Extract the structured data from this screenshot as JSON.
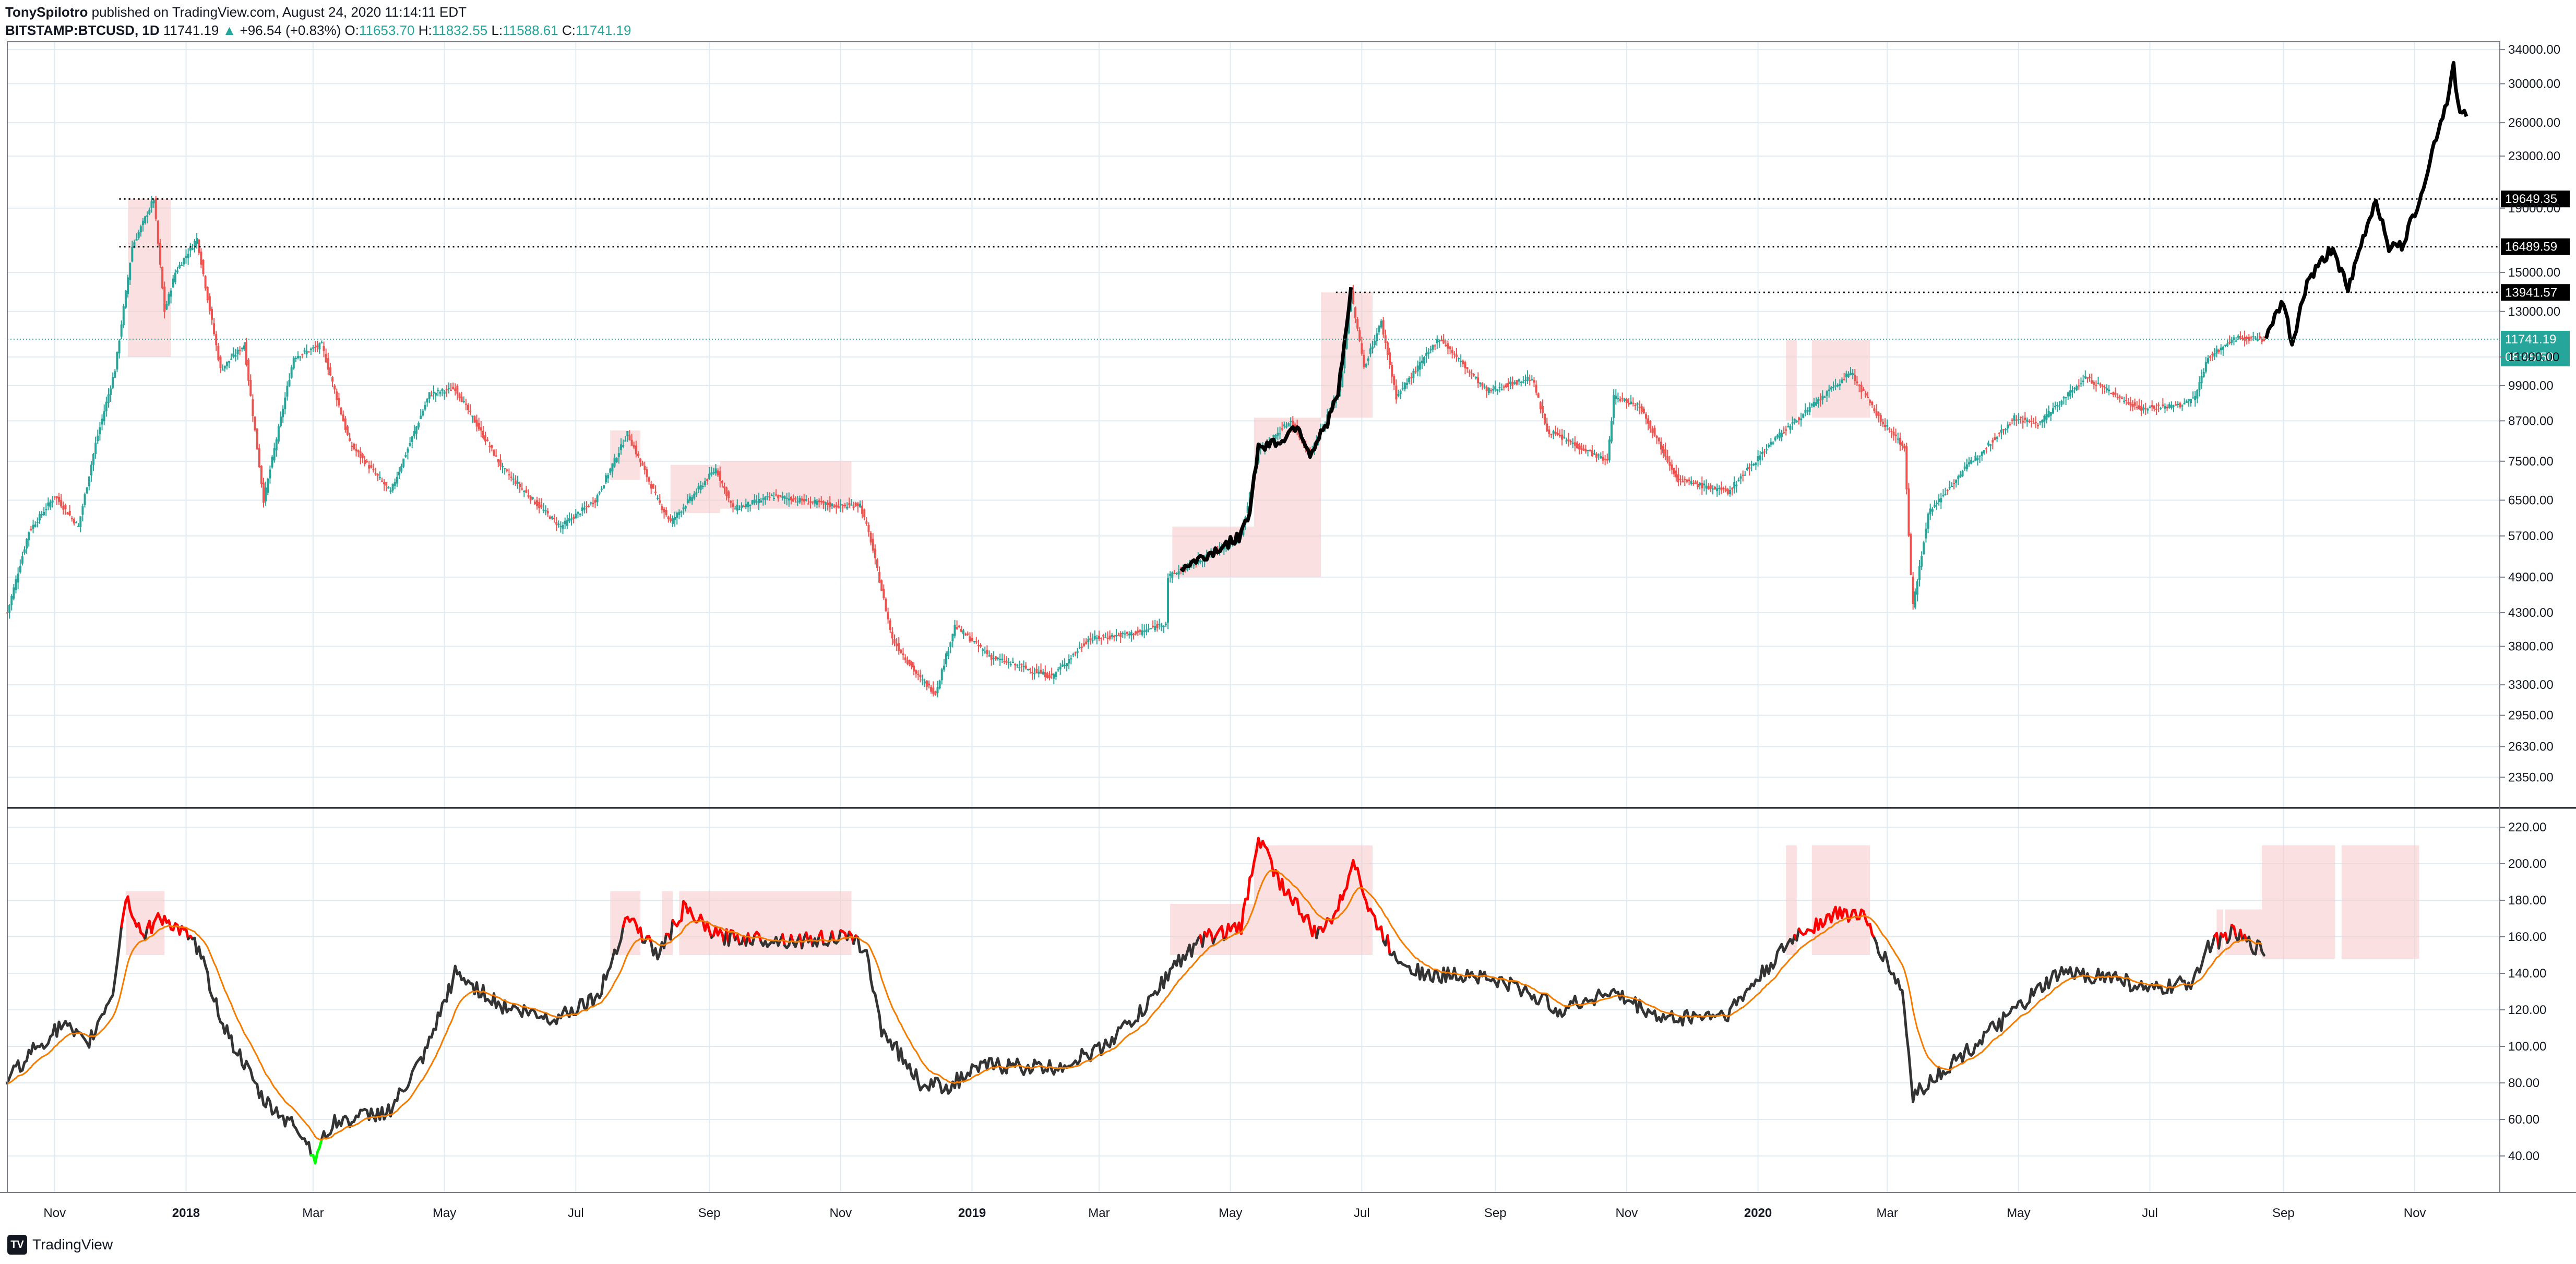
{
  "header": {
    "publisher": "TonySpilotro",
    "published_text": "published on TradingView.com, August 24, 2020 11:14:11 EDT",
    "symbol": "BITSTAMP:BTCUSD, 1D",
    "last": "11741.19",
    "change_arrow": "▲",
    "change": "+96.54 (+0.83%)",
    "open_label": "O:",
    "open": "11653.70",
    "high_label": "H:",
    "high": "11832.55",
    "low_label": "L:",
    "low": "11588.61",
    "close_label": "C:",
    "close": "11741.19"
  },
  "footer": {
    "brand": "TradingView",
    "logo_icon": "tradingview-logo-icon"
  },
  "colors": {
    "up": "#26a69a",
    "down": "#ef5350",
    "black": "#000000",
    "ema": "#f57c00",
    "rsi_hot": "#ff0000",
    "rsi_cold": "#00ff00",
    "zone": "#f5c6c8",
    "grid": "#e1ecf2",
    "axis": "#787b86"
  },
  "chart_data": [
    {
      "type": "line",
      "name": "BTCUSD daily price (log scale)",
      "scale": "log",
      "ylim": [
        2100,
        35000
      ],
      "y_ticks": [
        "34000.00",
        "30000.00",
        "26000.00",
        "23000.00",
        "19000.00",
        "15000.00",
        "13000.00",
        "11000.00",
        "9900.00",
        "8700.00",
        "7500.00",
        "6500.00",
        "5700.00",
        "4900.00",
        "4300.00",
        "3800.00",
        "3300.00",
        "2950.00",
        "2630.00",
        "2350.00"
      ],
      "x_ticks": [
        {
          "date": "2017-11-01",
          "label": "Nov",
          "bold": false
        },
        {
          "date": "2018-01-01",
          "label": "2018",
          "bold": true
        },
        {
          "date": "2018-03-01",
          "label": "Mar",
          "bold": false
        },
        {
          "date": "2018-05-01",
          "label": "May",
          "bold": false
        },
        {
          "date": "2018-07-01",
          "label": "Jul",
          "bold": false
        },
        {
          "date": "2018-09-01",
          "label": "Sep",
          "bold": false
        },
        {
          "date": "2018-11-01",
          "label": "Nov",
          "bold": false
        },
        {
          "date": "2019-01-01",
          "label": "2019",
          "bold": true
        },
        {
          "date": "2019-03-01",
          "label": "Mar",
          "bold": false
        },
        {
          "date": "2019-05-01",
          "label": "May",
          "bold": false
        },
        {
          "date": "2019-07-01",
          "label": "Jul",
          "bold": false
        },
        {
          "date": "2019-09-01",
          "label": "Sep",
          "bold": false
        },
        {
          "date": "2019-11-01",
          "label": "Nov",
          "bold": false
        },
        {
          "date": "2020-01-01",
          "label": "2020",
          "bold": true
        },
        {
          "date": "2020-03-01",
          "label": "Mar",
          "bold": false
        },
        {
          "date": "2020-05-01",
          "label": "May",
          "bold": false
        },
        {
          "date": "2020-07-01",
          "label": "Jul",
          "bold": false
        },
        {
          "date": "2020-09-01",
          "label": "Sep",
          "bold": false
        },
        {
          "date": "2020-11-01",
          "label": "Nov",
          "bold": false
        }
      ],
      "xlim": [
        "2017-10-10",
        "2020-12-10"
      ],
      "price_points": [
        [
          "2017-10-10",
          4300
        ],
        [
          "2017-10-20",
          5800
        ],
        [
          "2017-11-01",
          6600
        ],
        [
          "2017-11-12",
          5900
        ],
        [
          "2017-11-20",
          8000
        ],
        [
          "2017-11-29",
          10500
        ],
        [
          "2017-12-07",
          16500
        ],
        [
          "2017-12-17",
          19649
        ],
        [
          "2017-12-22",
          13000
        ],
        [
          "2017-12-27",
          15000
        ],
        [
          "2018-01-06",
          17000
        ],
        [
          "2018-01-17",
          10500
        ],
        [
          "2018-01-28",
          11500
        ],
        [
          "2018-02-06",
          6500
        ],
        [
          "2018-02-20",
          11000
        ],
        [
          "2018-03-05",
          11500
        ],
        [
          "2018-03-18",
          8000
        ],
        [
          "2018-04-06",
          6700
        ],
        [
          "2018-04-24",
          9600
        ],
        [
          "2018-05-06",
          9800
        ],
        [
          "2018-05-28",
          7300
        ],
        [
          "2018-06-13",
          6400
        ],
        [
          "2018-06-24",
          5900
        ],
        [
          "2018-07-10",
          6500
        ],
        [
          "2018-07-25",
          8300
        ],
        [
          "2018-08-08",
          6500
        ],
        [
          "2018-08-14",
          6000
        ],
        [
          "2018-09-04",
          7300
        ],
        [
          "2018-09-12",
          6300
        ],
        [
          "2018-10-01",
          6600
        ],
        [
          "2018-11-01",
          6350
        ],
        [
          "2018-11-10",
          6400
        ],
        [
          "2018-11-15",
          5600
        ],
        [
          "2018-11-25",
          3900
        ],
        [
          "2018-12-07",
          3400
        ],
        [
          "2018-12-15",
          3200
        ],
        [
          "2018-12-24",
          4100
        ],
        [
          "2019-01-10",
          3650
        ],
        [
          "2019-02-07",
          3400
        ],
        [
          "2019-02-24",
          3900
        ],
        [
          "2019-03-20",
          4000
        ],
        [
          "2019-04-01",
          4150
        ],
        [
          "2019-04-02",
          4900
        ],
        [
          "2019-04-20",
          5300
        ],
        [
          "2019-05-06",
          5700
        ],
        [
          "2019-05-14",
          7800
        ],
        [
          "2019-05-29",
          8700
        ],
        [
          "2019-06-07",
          7700
        ],
        [
          "2019-06-21",
          9800
        ],
        [
          "2019-06-26",
          13941
        ],
        [
          "2019-07-02",
          10600
        ],
        [
          "2019-07-10",
          12500
        ],
        [
          "2019-07-17",
          9500
        ],
        [
          "2019-08-06",
          11800
        ],
        [
          "2019-08-28",
          9700
        ],
        [
          "2019-09-18",
          10200
        ],
        [
          "2019-09-25",
          8400
        ],
        [
          "2019-10-23",
          7500
        ],
        [
          "2019-10-26",
          9500
        ],
        [
          "2019-11-07",
          9200
        ],
        [
          "2019-11-25",
          7000
        ],
        [
          "2019-12-18",
          6700
        ],
        [
          "2020-01-08",
          8100
        ],
        [
          "2020-01-28",
          9300
        ],
        [
          "2020-02-13",
          10400
        ],
        [
          "2020-02-26",
          8800
        ],
        [
          "2020-03-09",
          7900
        ],
        [
          "2020-03-12",
          4900
        ],
        [
          "2020-03-13",
          4400
        ],
        [
          "2020-03-20",
          6200
        ],
        [
          "2020-04-06",
          7300
        ],
        [
          "2020-04-29",
          8800
        ],
        [
          "2020-05-10",
          8600
        ],
        [
          "2020-06-01",
          10200
        ],
        [
          "2020-06-26",
          9100
        ],
        [
          "2020-07-15",
          9200
        ],
        [
          "2020-07-22",
          9500
        ],
        [
          "2020-07-28",
          11000
        ],
        [
          "2020-08-10",
          11800
        ],
        [
          "2020-08-24",
          11741
        ]
      ],
      "projection_points": [
        [
          "2020-08-24",
          11900
        ],
        [
          "2020-09-01",
          13500
        ],
        [
          "2020-09-05",
          11500
        ],
        [
          "2020-09-12",
          14500
        ],
        [
          "2020-09-24",
          16489
        ],
        [
          "2020-10-01",
          14000
        ],
        [
          "2020-10-08",
          17000
        ],
        [
          "2020-10-14",
          19649
        ],
        [
          "2020-10-20",
          16500
        ],
        [
          "2020-10-26",
          16489
        ],
        [
          "2020-11-03",
          19500
        ],
        [
          "2020-11-10",
          24000
        ],
        [
          "2020-11-17",
          29000
        ],
        [
          "2020-11-19",
          32000
        ],
        [
          "2020-11-22",
          26500
        ],
        [
          "2020-11-25",
          27000
        ]
      ],
      "black_segments": [
        {
          "note": "highlighted path",
          "points": [
            [
              "2019-04-08",
              5050
            ],
            [
              "2019-04-22",
              5350
            ],
            [
              "2019-05-06",
              5700
            ],
            [
              "2019-05-10",
              6300
            ],
            [
              "2019-05-14",
              7900
            ],
            [
              "2019-05-25",
              8100
            ],
            [
              "2019-06-01",
              8600
            ],
            [
              "2019-06-07",
              7700
            ],
            [
              "2019-06-14",
              8500
            ],
            [
              "2019-06-20",
              9600
            ],
            [
              "2019-06-26",
              13941
            ]
          ]
        }
      ],
      "zones": [
        [
          "2017-12-05",
          "2017-12-25",
          11000,
          19649
        ],
        [
          "2018-07-17",
          "2018-07-31",
          7000,
          8400
        ],
        [
          "2018-08-14",
          "2018-09-06",
          6200,
          7400
        ],
        [
          "2018-09-06",
          "2018-11-06",
          6300,
          7500
        ],
        [
          "2019-04-04",
          "2019-05-12",
          4900,
          5900
        ],
        [
          "2019-05-12",
          "2019-06-12",
          4900,
          8800
        ],
        [
          "2019-06-12",
          "2019-07-06",
          8800,
          13941
        ],
        [
          "2020-01-14",
          "2020-01-19",
          8700,
          11700
        ],
        [
          "2020-01-26",
          "2020-02-22",
          8800,
          11700
        ]
      ],
      "levels": [
        {
          "value": 19649.35,
          "label": "19649.35",
          "from": "2017-12-01"
        },
        {
          "value": 16489.59,
          "label": "16489.59",
          "from": "2017-12-01"
        },
        {
          "value": 13941.57,
          "label": "13941.57",
          "from": "2019-06-19"
        }
      ],
      "current_price": {
        "value": 11741.19,
        "label": "11741.19",
        "countdown": "08:45:50"
      }
    },
    {
      "type": "line",
      "name": "oscillator",
      "ylim": [
        20,
        230
      ],
      "y_ticks": [
        "220.00",
        "200.00",
        "180.00",
        "160.00",
        "140.00",
        "120.00",
        "100.00",
        "80.00",
        "60.00",
        "40.00"
      ],
      "hot_threshold": 160,
      "cold_threshold": 45,
      "osc_points": [
        [
          "2017-10-10",
          82
        ],
        [
          "2017-10-22",
          98
        ],
        [
          "2017-11-05",
          112
        ],
        [
          "2017-11-16",
          100
        ],
        [
          "2017-11-28",
          130
        ],
        [
          "2017-12-04",
          182
        ],
        [
          "2017-12-12",
          160
        ],
        [
          "2017-12-20",
          172
        ],
        [
          "2018-01-06",
          155
        ],
        [
          "2018-01-19",
          110
        ],
        [
          "2018-02-06",
          70
        ],
        [
          "2018-02-22",
          55
        ],
        [
          "2018-03-02",
          40
        ],
        [
          "2018-03-10",
          58
        ],
        [
          "2018-04-06",
          65
        ],
        [
          "2018-04-22",
          95
        ],
        [
          "2018-05-06",
          140
        ],
        [
          "2018-05-28",
          122
        ],
        [
          "2018-06-20",
          115
        ],
        [
          "2018-07-12",
          128
        ],
        [
          "2018-07-25",
          172
        ],
        [
          "2018-08-08",
          150
        ],
        [
          "2018-08-20",
          175
        ],
        [
          "2018-09-05",
          160
        ],
        [
          "2018-10-15",
          158
        ],
        [
          "2018-11-01",
          160
        ],
        [
          "2018-11-12",
          155
        ],
        [
          "2018-11-20",
          110
        ],
        [
          "2018-12-08",
          80
        ],
        [
          "2018-12-20",
          78
        ],
        [
          "2019-01-08",
          90
        ],
        [
          "2019-02-08",
          88
        ],
        [
          "2019-03-01",
          98
        ],
        [
          "2019-03-22",
          120
        ],
        [
          "2019-04-05",
          145
        ],
        [
          "2019-04-20",
          160
        ],
        [
          "2019-05-06",
          165
        ],
        [
          "2019-05-14",
          215
        ],
        [
          "2019-05-24",
          190
        ],
        [
          "2019-06-02",
          175
        ],
        [
          "2019-06-10",
          160
        ],
        [
          "2019-06-22",
          180
        ],
        [
          "2019-06-27",
          205
        ],
        [
          "2019-07-04",
          175
        ],
        [
          "2019-07-16",
          150
        ],
        [
          "2019-08-01",
          138
        ],
        [
          "2019-08-20",
          140
        ],
        [
          "2019-09-12",
          132
        ],
        [
          "2019-10-01",
          120
        ],
        [
          "2019-10-24",
          130
        ],
        [
          "2019-11-18",
          115
        ],
        [
          "2019-12-18",
          118
        ],
        [
          "2020-01-07",
          145
        ],
        [
          "2020-01-20",
          162
        ],
        [
          "2020-02-07",
          173
        ],
        [
          "2020-02-18",
          172
        ],
        [
          "2020-02-28",
          150
        ],
        [
          "2020-03-08",
          130
        ],
        [
          "2020-03-13",
          73
        ],
        [
          "2020-03-25",
          85
        ],
        [
          "2020-04-10",
          100
        ],
        [
          "2020-04-30",
          120
        ],
        [
          "2020-05-20",
          140
        ],
        [
          "2020-06-15",
          138
        ],
        [
          "2020-07-01",
          130
        ],
        [
          "2020-07-20",
          135
        ],
        [
          "2020-07-28",
          155
        ],
        [
          "2020-08-08",
          162
        ],
        [
          "2020-08-18",
          155
        ],
        [
          "2020-08-24",
          152
        ]
      ],
      "osc_zones": [
        [
          "2017-12-04",
          "2017-12-22",
          150,
          185
        ],
        [
          "2018-07-17",
          "2018-07-31",
          150,
          185
        ],
        [
          "2018-08-10",
          "2018-08-15",
          150,
          185
        ],
        [
          "2018-08-18",
          "2018-09-06",
          150,
          185
        ],
        [
          "2018-09-06",
          "2018-11-06",
          150,
          185
        ],
        [
          "2019-04-03",
          "2019-05-12",
          150,
          178
        ],
        [
          "2019-05-12",
          "2019-06-12",
          150,
          210
        ],
        [
          "2019-06-12",
          "2019-07-06",
          150,
          210
        ],
        [
          "2020-01-14",
          "2020-01-19",
          150,
          210
        ],
        [
          "2020-01-26",
          "2020-02-22",
          150,
          210
        ],
        [
          "2020-08-01",
          "2020-08-04",
          150,
          175
        ],
        [
          "2020-08-05",
          "2020-08-22",
          150,
          175
        ],
        [
          "2020-08-22",
          "2020-09-25",
          148,
          210
        ],
        [
          "2020-09-28",
          "2020-11-03",
          148,
          210
        ]
      ]
    }
  ]
}
